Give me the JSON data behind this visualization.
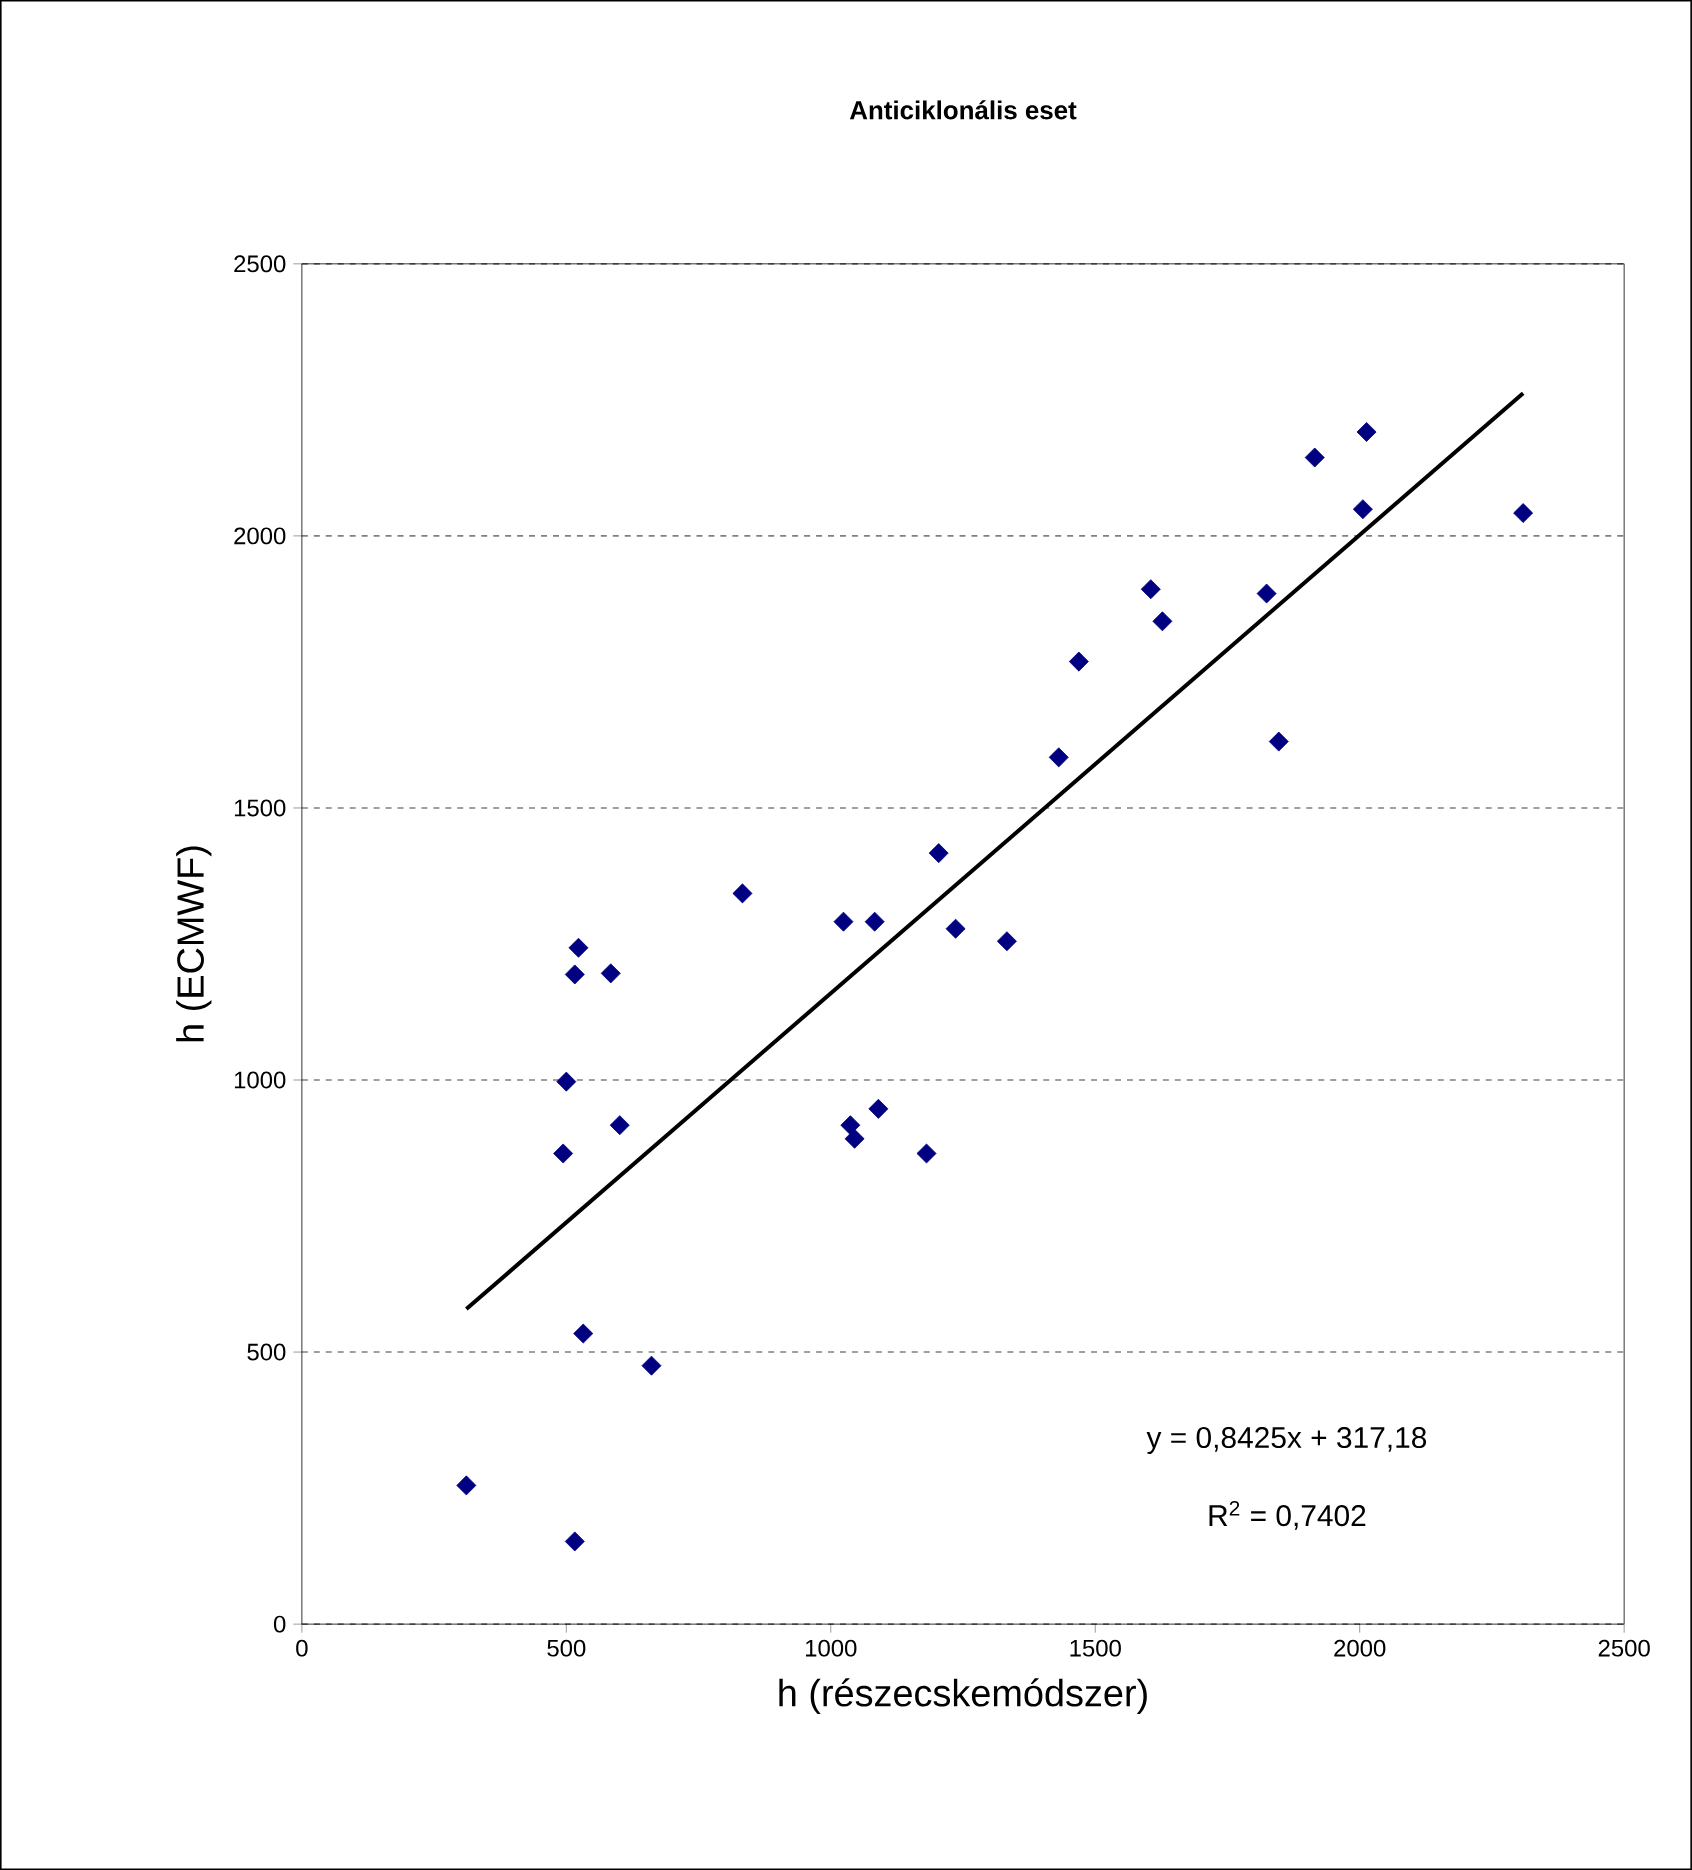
{
  "chart_data": {
    "type": "scatter",
    "title": "Anticiklonális eset",
    "xlabel": "h (részecskemódszer)",
    "ylabel": "h (ECMWF)",
    "xlim": [
      0,
      2500
    ],
    "ylim": [
      0,
      2500
    ],
    "xticks": [
      0,
      500,
      1000,
      1500,
      2000,
      2500
    ],
    "yticks": [
      0,
      500,
      1000,
      1500,
      2000,
      2500
    ],
    "grid": "y",
    "marker": "diamond",
    "annotations": [
      "y = 0,8425x + 317,18",
      "R$^{2}$ = 0,7402"
    ],
    "series": [
      {
        "color": "#000080",
        "x": [
          311,
          516,
          532,
          661,
          494,
          601,
          500,
          523,
          516,
          584,
          833,
          1024,
          1083,
          1204,
          1236,
          1037,
          1045,
          1090,
          1181,
          1333,
          1431,
          1469,
          1605,
          1627,
          1824,
          1847,
          1915,
          2013,
          2006,
          2309
        ],
        "values": [
          255,
          152,
          534,
          475,
          865,
          917,
          997,
          1243,
          1194,
          1196,
          1343,
          1291,
          1291,
          1417,
          1278,
          917,
          892,
          947,
          865,
          1255,
          1593,
          1769,
          1902,
          1843,
          1894,
          1622,
          2144,
          2191,
          2049,
          2042
        ]
      },
      {
        "type": "line",
        "color": "#000000",
        "marker": "none",
        "x": [
          311,
          2309
        ],
        "values": [
          579,
          2262
        ]
      }
    ]
  }
}
